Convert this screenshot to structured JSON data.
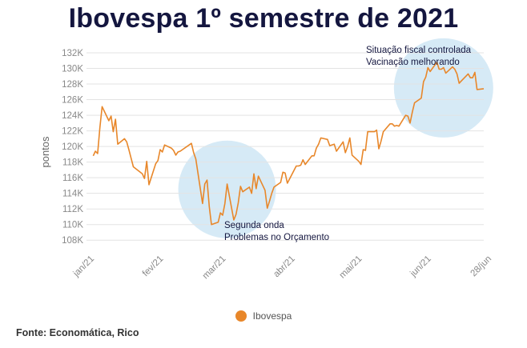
{
  "colors": {
    "line": "#E8872A",
    "bubble": "#CFE6F4",
    "title": "#14163F",
    "grid": "#E3E3E3",
    "tick": "#888888",
    "annotation": "#14163F"
  },
  "chart_data": {
    "type": "line",
    "title": "Ibovespa 1º semestre de 2021",
    "ylabel": "pontos",
    "xlabel": "",
    "ylim": [
      107000,
      132000
    ],
    "y_ticks": [
      108,
      110,
      112,
      114,
      116,
      118,
      120,
      122,
      124,
      126,
      128,
      130,
      132
    ],
    "y_tick_suffix": "K",
    "grid": true,
    "x_tick_labels": [
      "jan/21",
      "fev/21",
      "mar/21",
      "abr/21",
      "mai/21",
      "jun/21",
      "28/jun"
    ],
    "x_tick_dates": [
      "2021-01-01",
      "2021-02-01",
      "2021-03-01",
      "2021-04-01",
      "2021-05-01",
      "2021-06-01",
      "2021-06-28"
    ],
    "legend": {
      "position": "bottom",
      "entries": [
        "Ibovespa"
      ]
    },
    "series": [
      {
        "name": "Ibovespa",
        "points": [
          [
            "2021-01-04",
            118800
          ],
          [
            "2021-01-05",
            119400
          ],
          [
            "2021-01-06",
            119100
          ],
          [
            "2021-01-07",
            122400
          ],
          [
            "2021-01-08",
            125100
          ],
          [
            "2021-01-11",
            123300
          ],
          [
            "2021-01-12",
            123900
          ],
          [
            "2021-01-13",
            121900
          ],
          [
            "2021-01-14",
            123500
          ],
          [
            "2021-01-15",
            120300
          ],
          [
            "2021-01-18",
            121000
          ],
          [
            "2021-01-19",
            120600
          ],
          [
            "2021-01-20",
            119600
          ],
          [
            "2021-01-21",
            118500
          ],
          [
            "2021-01-22",
            117400
          ],
          [
            "2021-01-26",
            116500
          ],
          [
            "2021-01-27",
            115900
          ],
          [
            "2021-01-28",
            118100
          ],
          [
            "2021-01-29",
            115100
          ],
          [
            "2021-02-01",
            117800
          ],
          [
            "2021-02-02",
            118200
          ],
          [
            "2021-02-03",
            119600
          ],
          [
            "2021-02-04",
            119300
          ],
          [
            "2021-02-05",
            120200
          ],
          [
            "2021-02-08",
            119800
          ],
          [
            "2021-02-09",
            119500
          ],
          [
            "2021-02-10",
            118900
          ],
          [
            "2021-02-11",
            119300
          ],
          [
            "2021-02-12",
            119400
          ],
          [
            "2021-02-17",
            120400
          ],
          [
            "2021-02-18",
            119200
          ],
          [
            "2021-02-19",
            118400
          ],
          [
            "2021-02-22",
            112700
          ],
          [
            "2021-02-23",
            115200
          ],
          [
            "2021-02-24",
            115700
          ],
          [
            "2021-02-25",
            112300
          ],
          [
            "2021-02-26",
            110000
          ],
          [
            "2021-03-01",
            110300
          ],
          [
            "2021-03-02",
            111500
          ],
          [
            "2021-03-03",
            111200
          ],
          [
            "2021-03-04",
            112700
          ],
          [
            "2021-03-05",
            115200
          ],
          [
            "2021-03-08",
            110600
          ],
          [
            "2021-03-09",
            111300
          ],
          [
            "2021-03-10",
            112800
          ],
          [
            "2021-03-11",
            114900
          ],
          [
            "2021-03-12",
            114200
          ],
          [
            "2021-03-15",
            114800
          ],
          [
            "2021-03-16",
            114000
          ],
          [
            "2021-03-17",
            116500
          ],
          [
            "2021-03-18",
            114600
          ],
          [
            "2021-03-19",
            116200
          ],
          [
            "2021-03-22",
            114400
          ],
          [
            "2021-03-23",
            112100
          ],
          [
            "2021-03-24",
            113000
          ],
          [
            "2021-03-25",
            114000
          ],
          [
            "2021-03-26",
            114800
          ],
          [
            "2021-03-29",
            115400
          ],
          [
            "2021-03-30",
            116700
          ],
          [
            "2021-03-31",
            116600
          ],
          [
            "2021-04-01",
            115300
          ],
          [
            "2021-04-05",
            117500
          ],
          [
            "2021-04-06",
            117500
          ],
          [
            "2021-04-07",
            117600
          ],
          [
            "2021-04-08",
            118300
          ],
          [
            "2021-04-09",
            117700
          ],
          [
            "2021-04-12",
            118800
          ],
          [
            "2021-04-13",
            118800
          ],
          [
            "2021-04-14",
            119800
          ],
          [
            "2021-04-15",
            120300
          ],
          [
            "2021-04-16",
            121100
          ],
          [
            "2021-04-19",
            120900
          ],
          [
            "2021-04-20",
            120100
          ],
          [
            "2021-04-22",
            120300
          ],
          [
            "2021-04-23",
            119400
          ],
          [
            "2021-04-26",
            120600
          ],
          [
            "2021-04-27",
            119200
          ],
          [
            "2021-04-28",
            120000
          ],
          [
            "2021-04-29",
            121100
          ],
          [
            "2021-04-30",
            118900
          ],
          [
            "2021-05-03",
            118100
          ],
          [
            "2021-05-04",
            117700
          ],
          [
            "2021-05-05",
            119600
          ],
          [
            "2021-05-06",
            119500
          ],
          [
            "2021-05-07",
            121900
          ],
          [
            "2021-05-10",
            121900
          ],
          [
            "2021-05-11",
            122100
          ],
          [
            "2021-05-12",
            119700
          ],
          [
            "2021-05-13",
            120700
          ],
          [
            "2021-05-14",
            121900
          ],
          [
            "2021-05-17",
            122900
          ],
          [
            "2021-05-18",
            122900
          ],
          [
            "2021-05-19",
            122600
          ],
          [
            "2021-05-20",
            122700
          ],
          [
            "2021-05-21",
            122600
          ],
          [
            "2021-05-24",
            124000
          ],
          [
            "2021-05-25",
            123900
          ],
          [
            "2021-05-26",
            123000
          ],
          [
            "2021-05-27",
            124400
          ],
          [
            "2021-05-28",
            125600
          ],
          [
            "2021-05-31",
            126200
          ],
          [
            "2021-06-01",
            128300
          ],
          [
            "2021-06-02",
            128900
          ],
          [
            "2021-06-03",
            130100
          ],
          [
            "2021-06-04",
            129600
          ],
          [
            "2021-06-07",
            130800
          ],
          [
            "2021-06-08",
            129900
          ],
          [
            "2021-06-09",
            129900
          ],
          [
            "2021-06-10",
            130100
          ],
          [
            "2021-06-11",
            129400
          ],
          [
            "2021-06-14",
            130200
          ],
          [
            "2021-06-15",
            129900
          ],
          [
            "2021-06-16",
            129300
          ],
          [
            "2021-06-17",
            128100
          ],
          [
            "2021-06-18",
            128400
          ],
          [
            "2021-06-21",
            129300
          ],
          [
            "2021-06-22",
            128800
          ],
          [
            "2021-06-23",
            128800
          ],
          [
            "2021-06-24",
            129500
          ],
          [
            "2021-06-25",
            127300
          ],
          [
            "2021-06-28",
            127400
          ]
        ]
      }
    ],
    "annotations": [
      {
        "lines": [
          "Segunda onda",
          "Problemas no Orçamento"
        ],
        "around": [
          "2021-03-05",
          114500
        ]
      },
      {
        "lines": [
          "Situação fiscal controlada",
          "Vacinação melhorando"
        ],
        "around": [
          "2021-06-10",
          127500
        ]
      }
    ]
  },
  "source_text": "Fonte: Economática, Rico"
}
